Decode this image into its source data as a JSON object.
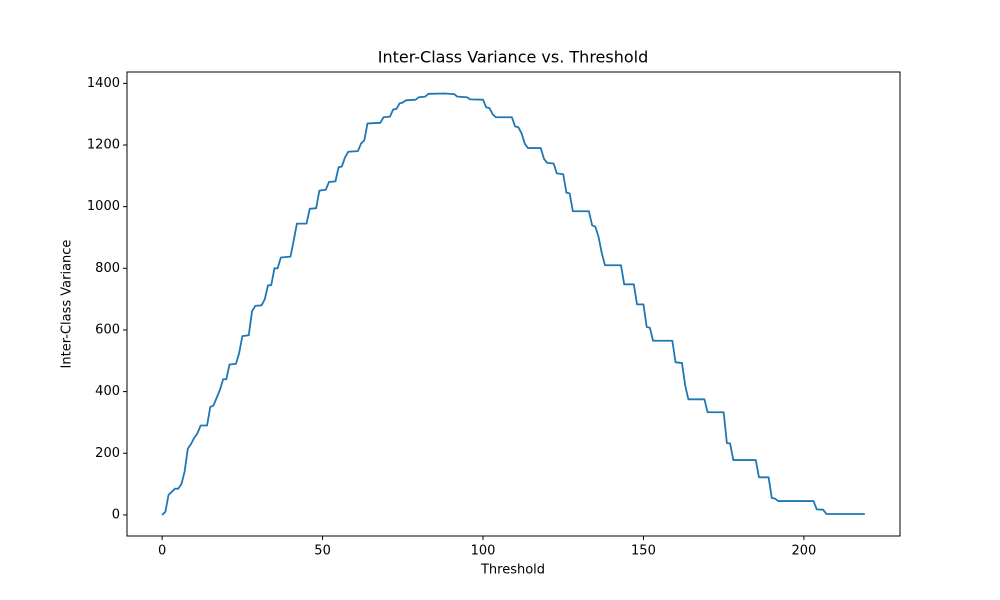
{
  "chart_data": {
    "type": "line",
    "title": "Inter-Class Variance vs. Threshold",
    "x_label": "Threshold",
    "y_label": "Inter-Class Variance",
    "xlim": [
      -10.95,
      229.95
    ],
    "ylim": [
      -68.4,
      1436.8
    ],
    "xticks": [
      0,
      50,
      100,
      150,
      200
    ],
    "yticks": [
      0,
      200,
      400,
      600,
      800,
      1000,
      1200,
      1400
    ],
    "grid": false,
    "series": [
      {
        "color": "#1f77b4",
        "x": [
          0,
          1,
          2,
          3,
          4,
          5,
          6,
          7,
          8,
          9,
          10,
          11,
          12,
          14,
          15,
          16,
          17,
          18,
          19,
          20,
          21,
          23,
          24,
          25,
          27,
          28,
          29,
          31,
          32,
          33,
          34,
          35,
          36,
          37,
          40,
          41,
          42,
          45,
          46,
          48,
          49,
          51,
          52,
          54,
          55,
          56,
          57,
          58,
          61,
          62,
          63,
          64,
          68,
          69,
          71,
          72,
          73,
          74,
          75,
          76,
          79,
          80,
          82,
          83,
          88,
          91,
          92,
          95,
          96,
          100,
          101,
          102,
          103,
          104,
          109,
          110,
          111,
          112,
          113,
          114,
          118,
          119,
          120,
          122,
          123,
          125,
          126,
          127,
          128,
          133,
          134,
          135,
          136,
          137,
          138,
          143,
          144,
          147,
          148,
          150,
          151,
          152,
          153,
          159,
          160,
          162,
          163,
          164,
          169,
          170,
          175,
          176,
          177,
          178,
          185,
          186,
          189,
          190,
          191,
          192,
          203,
          204,
          206,
          207,
          219
        ],
        "values": [
          0,
          10,
          65,
          75,
          85,
          85,
          100,
          140,
          215,
          230,
          250,
          265,
          290,
          290,
          350,
          355,
          380,
          405,
          440,
          440,
          488,
          490,
          525,
          580,
          583,
          660,
          678,
          680,
          700,
          745,
          745,
          800,
          800,
          835,
          838,
          890,
          945,
          945,
          993,
          995,
          1052,
          1055,
          1080,
          1082,
          1128,
          1130,
          1160,
          1178,
          1180,
          1205,
          1215,
          1270,
          1272,
          1290,
          1292,
          1315,
          1317,
          1335,
          1338,
          1345,
          1347,
          1355,
          1357,
          1366,
          1367,
          1365,
          1357,
          1355,
          1348,
          1347,
          1322,
          1320,
          1300,
          1290,
          1290,
          1260,
          1258,
          1238,
          1205,
          1190,
          1190,
          1155,
          1142,
          1140,
          1108,
          1105,
          1045,
          1043,
          985,
          985,
          940,
          935,
          902,
          850,
          810,
          810,
          748,
          748,
          683,
          683,
          610,
          607,
          565,
          565,
          495,
          493,
          420,
          375,
          375,
          333,
          333,
          233,
          232,
          178,
          178,
          122,
          122,
          55,
          53,
          45,
          45,
          18,
          17,
          3,
          3
        ]
      }
    ]
  }
}
